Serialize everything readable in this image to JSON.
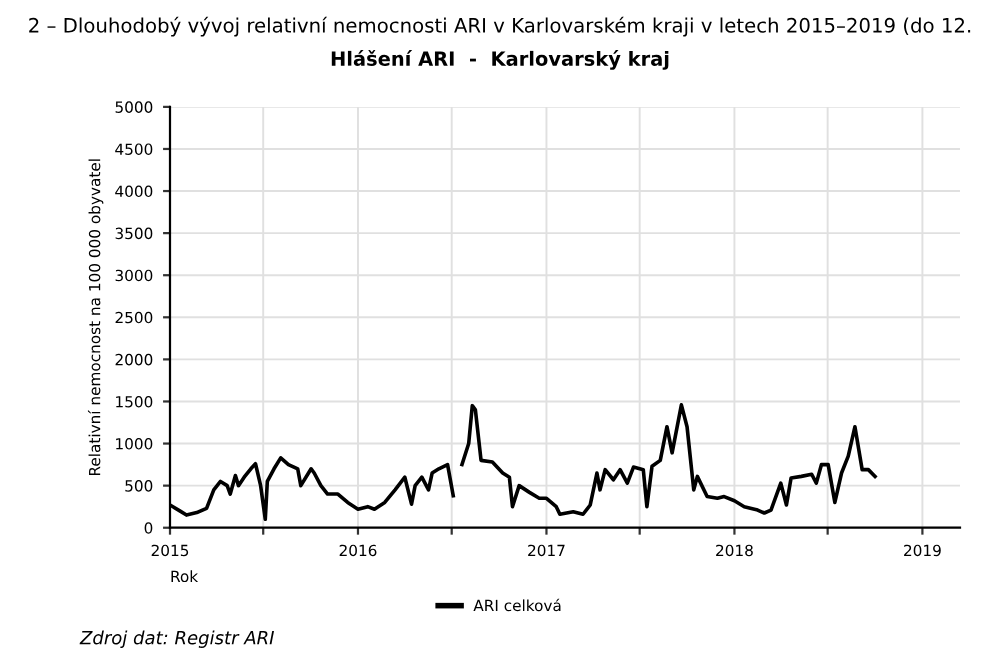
{
  "chart_data": {
    "type": "line",
    "title": "2 – Dlouhodobý vývoj relativní nemocnosti ARI v Karlovarském kraji v letech 2015–2019 (do 12.",
    "subtitle": "Hlášení ARI  -  Karlovarský kraj",
    "xlabel": "Rok",
    "ylabel": "Relativní nemocnost na 100 000 obyvatel",
    "annotations": [
      "Zdroj dat: Registr ARI"
    ],
    "x": [
      "2015-01-01",
      "2015-01-20",
      "2015-02-02",
      "2015-02-22",
      "2015-03-13",
      "2015-03-27",
      "2015-04-09",
      "2015-04-22",
      "2015-04-28",
      "2015-05-08",
      "2015-05-14",
      "2015-05-25",
      "2015-06-07",
      "2015-06-16",
      "2015-06-26",
      "2015-07-05",
      "2015-07-09",
      "2015-07-22",
      "2015-08-04",
      "2015-08-19",
      "2015-09-06",
      "2015-09-12",
      "2015-10-02",
      "2015-10-08",
      "2015-10-21",
      "2015-11-03",
      "2015-11-23",
      "2015-12-12",
      "2016-01-01",
      "2016-01-20",
      "2016-02-02",
      "2016-02-22",
      "2016-03-13",
      "2016-04-01",
      "2016-04-14",
      "2016-04-21",
      "2016-05-04",
      "2016-05-17",
      "2016-05-24",
      "2016-06-06",
      "2016-06-23",
      "2016-07-04",
      "2016-07-12",
      "2016-07-21",
      "2016-08-03",
      "2016-08-10",
      "2016-08-16",
      "2016-08-27",
      "2016-09-18",
      "2016-10-08",
      "2016-10-21",
      "2016-10-27",
      "2016-11-09",
      "2016-11-29",
      "2016-12-18",
      "2017-01-01",
      "2017-01-20",
      "2017-01-27",
      "2017-02-22",
      "2017-03-13",
      "2017-03-27",
      "2017-04-09",
      "2017-04-15",
      "2017-04-25",
      "2017-05-11",
      "2017-05-24",
      "2017-06-07",
      "2017-06-19",
      "2017-07-08",
      "2017-07-15",
      "2017-07-25",
      "2017-08-10",
      "2017-08-23",
      "2017-09-02",
      "2017-09-20",
      "2017-10-01",
      "2017-10-14",
      "2017-10-21",
      "2017-11-09",
      "2017-11-29",
      "2017-12-12",
      "2018-01-01",
      "2018-01-20",
      "2018-02-15",
      "2018-02-28",
      "2018-03-13",
      "2018-04-01",
      "2018-04-12",
      "2018-04-21",
      "2018-05-11",
      "2018-05-31",
      "2018-06-09",
      "2018-06-19",
      "2018-07-02",
      "2018-07-15",
      "2018-07-28",
      "2018-08-10",
      "2018-08-23",
      "2018-09-06",
      "2018-09-18",
      "2018-10-01"
    ],
    "series": [
      {
        "name": "ARI celková",
        "color": "#000000",
        "values": [
          270,
          200,
          150,
          180,
          230,
          450,
          550,
          500,
          400,
          620,
          500,
          600,
          700,
          760,
          500,
          100,
          550,
          700,
          830,
          750,
          700,
          500,
          700,
          650,
          500,
          400,
          400,
          300,
          220,
          250,
          220,
          300,
          450,
          600,
          280,
          500,
          600,
          450,
          650,
          700,
          750,
          380,
          null,
          750,
          1000,
          1450,
          1400,
          800,
          780,
          650,
          600,
          250,
          500,
          420,
          350,
          350,
          250,
          160,
          190,
          160,
          270,
          650,
          450,
          690,
          570,
          690,
          530,
          720,
          690,
          250,
          730,
          800,
          1200,
          890,
          1460,
          1200,
          450,
          610,
          370,
          350,
          370,
          320,
          250,
          210,
          175,
          210,
          530,
          270,
          590,
          610,
          635,
          530,
          750,
          750,
          300,
          650,
          850,
          1200,
          690,
          690,
          610
        ]
      }
    ],
    "xlim": [
      "2015-01-01",
      "2019-03-15"
    ],
    "xticks": [
      {
        "value": "2015-01-01",
        "label": "2015"
      },
      {
        "value": "2015-07-01",
        "label": null
      },
      {
        "value": "2016-01-01",
        "label": "2016"
      },
      {
        "value": "2016-07-01",
        "label": null
      },
      {
        "value": "2017-01-01",
        "label": "2017"
      },
      {
        "value": "2017-07-01",
        "label": null
      },
      {
        "value": "2018-01-01",
        "label": "2018"
      },
      {
        "value": "2018-07-01",
        "label": null
      },
      {
        "value": "2019-01-01",
        "label": "2019"
      }
    ],
    "ylim": [
      0,
      5000
    ],
    "yticks": [
      0,
      500,
      1000,
      1500,
      2000,
      2500,
      3000,
      3500,
      4000,
      4500,
      5000
    ],
    "grid": true,
    "legend": "bottom",
    "marker": "none",
    "line_style": "solid"
  }
}
